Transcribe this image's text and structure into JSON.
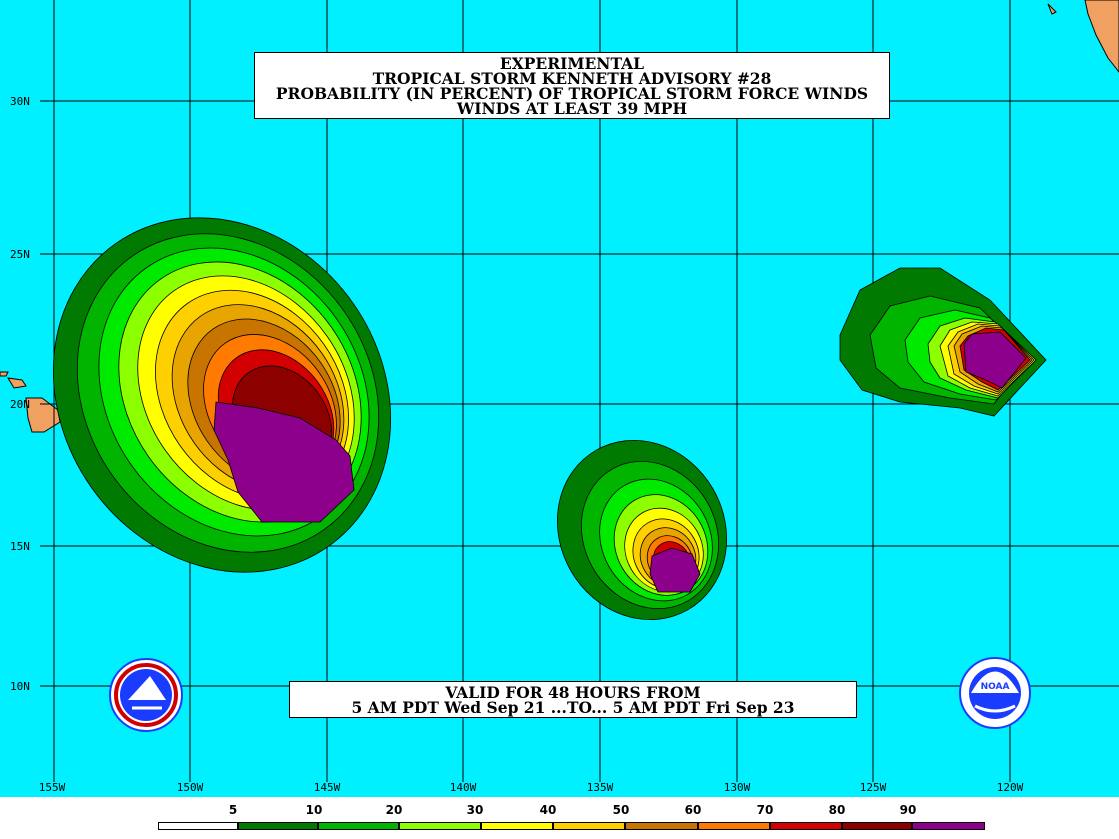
{
  "title": {
    "line1": "EXPERIMENTAL",
    "line2": "TROPICAL STORM KENNETH ADVISORY #28",
    "line3": "PROBABILITY (IN PERCENT) OF TROPICAL STORM FORCE WINDS",
    "line4": "WINDS AT LEAST 39 MPH"
  },
  "valid": {
    "line1": "VALID FOR 48 HOURS FROM",
    "line2": "5 AM PDT Wed Sep 21 ...TO... 5 AM PDT Fri Sep 23"
  },
  "lat_labels": [
    "30N",
    "25N",
    "20N",
    "15N",
    "10N"
  ],
  "lon_labels": [
    "155W",
    "150W",
    "145W",
    "140W",
    "135W",
    "130W",
    "125W",
    "120W"
  ],
  "legend": {
    "ticks": [
      "5",
      "10",
      "20",
      "30",
      "40",
      "50",
      "60",
      "70",
      "80",
      "90"
    ],
    "colors": [
      "#ffffff",
      "#007a00",
      "#00b400",
      "#00ea00",
      "#8cff00",
      "#ffff00",
      "#ffd000",
      "#e8a400",
      "#c87400",
      "#ff7a00",
      "#d20000",
      "#8c0000",
      "#8c008c"
    ]
  },
  "colors": {
    "ocean": "#00f0ff",
    "land": "#f0a060",
    "grid": "#000000"
  },
  "icons": {
    "left_logo": "nws-logo-icon",
    "right_logo": "noaa-logo-icon"
  }
}
